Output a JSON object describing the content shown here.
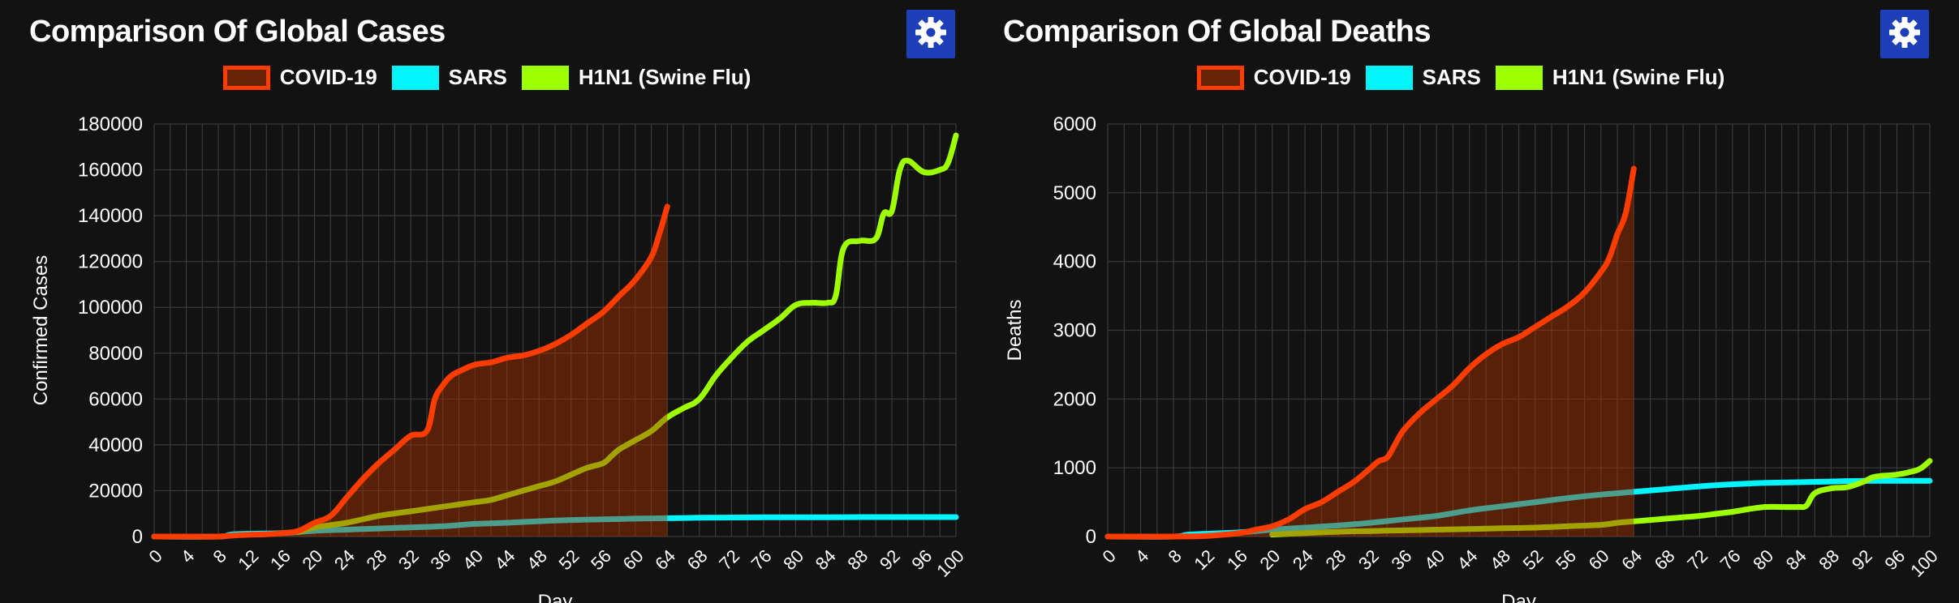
{
  "colors": {
    "covid": "#ff3c00",
    "covid_fill": "rgba(170,50,0,0.45)",
    "sars": "#00f5ff",
    "h1n1": "#9dff00",
    "grid": "#3a3a3a",
    "button": "#1d3fb8"
  },
  "icons": {
    "settings": "gear-icon"
  },
  "legend": {
    "covid": "COVID-19",
    "sars": "SARS",
    "h1n1": "H1N1 (Swine Flu)"
  },
  "chart_data": [
    {
      "type": "line",
      "title": "Comparison Of Global Cases",
      "xlabel": "Day",
      "ylabel": "Confirmed Cases",
      "xlim": [
        0,
        100
      ],
      "ylim": [
        0,
        180000
      ],
      "xticks": [
        0,
        4,
        8,
        12,
        16,
        20,
        24,
        28,
        32,
        36,
        40,
        44,
        48,
        52,
        56,
        60,
        64,
        68,
        72,
        76,
        80,
        84,
        88,
        92,
        96,
        100
      ],
      "yticks": [
        0,
        20000,
        40000,
        60000,
        80000,
        100000,
        120000,
        140000,
        160000,
        180000
      ],
      "grid": true,
      "legend_position": "top-center",
      "series": [
        {
          "name": "COVID-19",
          "key": "covid",
          "filled": true,
          "x": [
            0,
            4,
            8,
            10,
            12,
            14,
            16,
            18,
            20,
            22,
            24,
            26,
            28,
            30,
            32,
            34,
            35,
            36,
            37,
            38,
            40,
            42,
            44,
            46,
            48,
            50,
            52,
            54,
            56,
            58,
            60,
            62,
            63,
            64
          ],
          "y": [
            0,
            0,
            0,
            500,
            800,
            1000,
            1500,
            2500,
            6000,
            9000,
            17000,
            25000,
            32000,
            38000,
            44000,
            46000,
            60000,
            66000,
            70000,
            72000,
            75000,
            76000,
            78000,
            79000,
            81000,
            84000,
            88000,
            93000,
            98000,
            105000,
            112000,
            122000,
            132000,
            144000
          ]
        },
        {
          "name": "SARS",
          "key": "sars",
          "filled": false,
          "x": [
            0,
            8,
            10,
            16,
            20,
            24,
            28,
            32,
            36,
            40,
            44,
            48,
            52,
            56,
            60,
            64,
            68,
            72,
            76,
            80,
            84,
            88,
            92,
            96,
            100
          ],
          "y": [
            0,
            0,
            1000,
            1500,
            2500,
            3000,
            3500,
            4000,
            4500,
            5500,
            6000,
            6700,
            7200,
            7500,
            7800,
            8000,
            8200,
            8300,
            8400,
            8400,
            8400,
            8500,
            8500,
            8500,
            8500
          ]
        },
        {
          "name": "H1N1 (Swine Flu)",
          "key": "h1n1",
          "filled": false,
          "x": [
            18,
            20,
            24,
            28,
            32,
            36,
            38,
            40,
            42,
            44,
            46,
            48,
            50,
            52,
            54,
            56,
            57,
            58,
            60,
            62,
            64,
            66,
            68,
            70,
            72,
            74,
            76,
            78,
            80,
            82,
            84,
            85,
            86,
            88,
            90,
            91,
            92,
            93,
            94,
            96,
            98,
            99,
            100
          ],
          "y": [
            2000,
            4000,
            6000,
            9000,
            11000,
            13000,
            14000,
            15000,
            16000,
            18000,
            20000,
            22000,
            24000,
            27000,
            30000,
            32000,
            35000,
            38000,
            42000,
            46000,
            52000,
            56000,
            60000,
            70000,
            78000,
            85000,
            90000,
            95000,
            101000,
            102000,
            102000,
            105000,
            126000,
            129000,
            130000,
            141000,
            142000,
            160000,
            164000,
            159000,
            160000,
            163000,
            175000
          ]
        }
      ]
    },
    {
      "type": "line",
      "title": "Comparison Of Global Deaths",
      "xlabel": "Day",
      "ylabel": "Deaths",
      "xlim": [
        0,
        100
      ],
      "ylim": [
        0,
        6000
      ],
      "xticks": [
        0,
        4,
        8,
        12,
        16,
        20,
        24,
        28,
        32,
        36,
        40,
        44,
        48,
        52,
        56,
        60,
        64,
        68,
        72,
        76,
        80,
        84,
        88,
        92,
        96,
        100
      ],
      "yticks": [
        0,
        1000,
        2000,
        3000,
        4000,
        5000,
        6000
      ],
      "grid": true,
      "legend_position": "top-center",
      "series": [
        {
          "name": "COVID-19",
          "key": "covid",
          "filled": true,
          "x": [
            0,
            8,
            12,
            16,
            18,
            20,
            22,
            24,
            26,
            28,
            30,
            32,
            33,
            34,
            35,
            36,
            38,
            40,
            42,
            44,
            46,
            48,
            50,
            52,
            54,
            56,
            58,
            60,
            61,
            62,
            63,
            64
          ],
          "y": [
            0,
            0,
            10,
            50,
            100,
            150,
            250,
            400,
            500,
            650,
            800,
            1000,
            1100,
            1150,
            1350,
            1550,
            1800,
            2000,
            2200,
            2450,
            2650,
            2800,
            2900,
            3050,
            3200,
            3350,
            3550,
            3850,
            4050,
            4400,
            4700,
            5350
          ]
        },
        {
          "name": "SARS",
          "key": "sars",
          "filled": false,
          "x": [
            0,
            8,
            10,
            16,
            20,
            24,
            28,
            32,
            36,
            40,
            44,
            48,
            52,
            56,
            60,
            64,
            68,
            72,
            76,
            80,
            84,
            88,
            92,
            96,
            100
          ],
          "y": [
            0,
            0,
            30,
            60,
            100,
            130,
            160,
            200,
            250,
            300,
            380,
            440,
            500,
            560,
            610,
            650,
            690,
            730,
            760,
            780,
            790,
            800,
            810,
            810,
            810
          ]
        },
        {
          "name": "H1N1 (Swine Flu)",
          "key": "h1n1",
          "filled": false,
          "x": [
            20,
            24,
            28,
            32,
            36,
            40,
            44,
            48,
            52,
            56,
            60,
            62,
            64,
            66,
            68,
            70,
            72,
            74,
            76,
            78,
            80,
            82,
            84,
            85,
            86,
            88,
            90,
            92,
            93,
            94,
            96,
            98,
            99,
            100
          ],
          "y": [
            30,
            50,
            70,
            80,
            90,
            100,
            110,
            120,
            130,
            150,
            170,
            200,
            220,
            240,
            260,
            280,
            300,
            330,
            360,
            400,
            430,
            430,
            430,
            450,
            630,
            700,
            720,
            800,
            860,
            880,
            900,
            950,
            1000,
            1100
          ]
        }
      ]
    }
  ]
}
